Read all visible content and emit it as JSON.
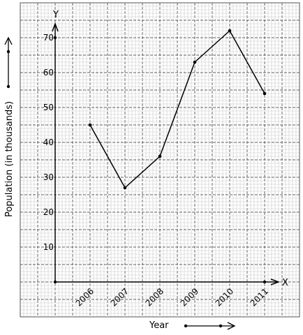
{
  "chart_data": {
    "type": "line",
    "categories": [
      "2006",
      "2007",
      "2008",
      "2009",
      "2010",
      "2011"
    ],
    "values": [
      45,
      27,
      36,
      63,
      72,
      54
    ],
    "title": "",
    "xlabel": "Year",
    "ylabel": "Population (in thousands)",
    "ylim": [
      0,
      70
    ],
    "yticks": [
      10,
      20,
      30,
      40,
      50,
      60,
      70
    ],
    "x_axis_letter": "X",
    "y_axis_letter": "Y",
    "grid": true,
    "grid_style": "graph-paper",
    "colors": {
      "line": "#000000",
      "grid_minor": "#c8c8c8",
      "grid_major": "#606060"
    }
  }
}
